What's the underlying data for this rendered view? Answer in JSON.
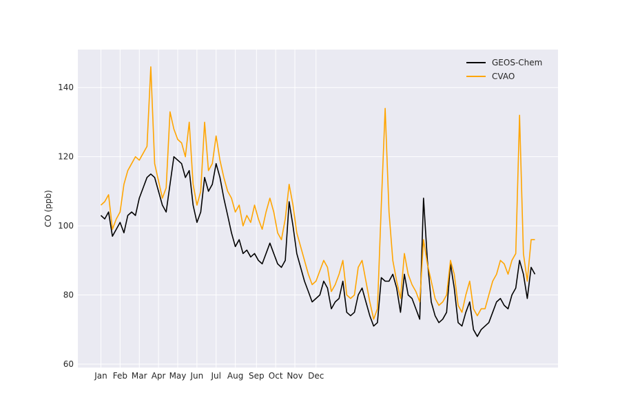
{
  "chart_data": {
    "type": "line",
    "title": "",
    "xlabel": "",
    "ylabel": "CO (ppb)",
    "ylim": [
      59,
      151
    ],
    "xlim_days": [
      -43,
      207
    ],
    "x_tick_labels": [
      "Jan",
      "Feb",
      "Mar",
      "Apr",
      "May",
      "Jun",
      "Jul",
      "Aug",
      "Sep",
      "Oct",
      "Nov",
      "Dec"
    ],
    "y_ticks": [
      60,
      80,
      100,
      120,
      140
    ],
    "grid": true,
    "legend_position": "top-right",
    "x_unit": "days",
    "series": [
      {
        "name": "GEOS-Chem",
        "color": "#000000",
        "x": [
          -31,
          -29,
          -27,
          -25,
          -23,
          -21,
          -19,
          -17,
          -15,
          -13,
          -11,
          -9,
          -7,
          -5,
          -3,
          -1,
          1,
          3,
          5,
          7,
          9,
          11,
          13,
          15,
          17,
          19,
          21,
          23,
          25,
          27,
          29,
          31,
          33,
          35,
          37,
          39,
          41,
          43,
          45,
          47,
          49,
          51,
          53,
          55,
          57,
          59,
          61,
          63,
          65,
          67,
          69,
          71,
          73,
          75,
          77,
          79,
          81,
          83,
          85,
          87,
          89,
          91,
          93,
          95,
          97,
          99,
          101,
          103,
          105,
          107,
          109,
          111,
          113,
          115,
          117,
          119,
          121,
          123,
          125,
          127,
          129,
          131,
          133,
          135,
          137,
          139,
          141,
          143,
          145,
          147,
          149,
          151,
          153,
          155,
          157,
          159,
          161,
          163,
          165,
          167,
          169,
          171,
          173,
          175,
          177,
          179,
          181,
          183,
          185,
          187,
          189,
          191,
          193,
          195
        ],
        "y": [
          103,
          102,
          104,
          97,
          99,
          101,
          98,
          103,
          104,
          103,
          108,
          111,
          114,
          115,
          114,
          110,
          106,
          104,
          112,
          120,
          119,
          118,
          114,
          116,
          106,
          101,
          104,
          114,
          110,
          112,
          118,
          114,
          108,
          103,
          98,
          94,
          96,
          92,
          93,
          91,
          92,
          90,
          89,
          92,
          95,
          92,
          89,
          88,
          90,
          107,
          100,
          92,
          88,
          84,
          81,
          78,
          79,
          80,
          84,
          82,
          76,
          78,
          79,
          84,
          75,
          74,
          75,
          80,
          82,
          78,
          74,
          71,
          72,
          85,
          84,
          84,
          86,
          82,
          75,
          86,
          80,
          79,
          76,
          73,
          108,
          90,
          78,
          74,
          72,
          73,
          75,
          89,
          82,
          72,
          71,
          75,
          78,
          70,
          68,
          70,
          71,
          72,
          75,
          78,
          79,
          77,
          76,
          80,
          82,
          90,
          86,
          79,
          88,
          86
        ]
      },
      {
        "name": "CVAO",
        "color": "#ffa500",
        "x": [
          -31,
          -29,
          -27,
          -25,
          -23,
          -21,
          -19,
          -17,
          -15,
          -13,
          -11,
          -9,
          -7,
          -5,
          -3,
          -1,
          1,
          3,
          5,
          7,
          9,
          11,
          13,
          15,
          17,
          19,
          21,
          23,
          25,
          27,
          29,
          31,
          33,
          35,
          37,
          39,
          41,
          43,
          45,
          47,
          49,
          51,
          53,
          55,
          57,
          59,
          61,
          63,
          65,
          67,
          69,
          71,
          73,
          75,
          77,
          79,
          81,
          83,
          85,
          87,
          89,
          91,
          93,
          95,
          97,
          99,
          101,
          103,
          105,
          107,
          109,
          111,
          113,
          115,
          117,
          119,
          121,
          123,
          125,
          127,
          129,
          131,
          133,
          135,
          137,
          139,
          141,
          143,
          145,
          147,
          149,
          151,
          153,
          155,
          157,
          159,
          161,
          163,
          165,
          167,
          169,
          171,
          173,
          175,
          177,
          179,
          181,
          183,
          185,
          187,
          189,
          191,
          193,
          195
        ],
        "y": [
          106,
          107,
          109,
          99,
          102,
          104,
          112,
          116,
          118,
          120,
          119,
          121,
          123,
          146,
          118,
          113,
          108,
          111,
          133,
          128,
          125,
          124,
          120,
          130,
          112,
          106,
          110,
          130,
          116,
          118,
          126,
          119,
          114,
          110,
          108,
          104,
          106,
          100,
          103,
          101,
          106,
          102,
          99,
          104,
          108,
          104,
          98,
          96,
          102,
          112,
          106,
          98,
          94,
          90,
          86,
          83,
          84,
          87,
          90,
          88,
          81,
          83,
          86,
          90,
          80,
          79,
          80,
          88,
          90,
          84,
          78,
          73,
          76,
          106,
          134,
          104,
          90,
          84,
          79,
          92,
          86,
          83,
          81,
          78,
          96,
          89,
          84,
          79,
          77,
          78,
          80,
          90,
          86,
          77,
          75,
          80,
          84,
          76,
          74,
          76,
          76,
          80,
          84,
          86,
          90,
          89,
          86,
          90,
          92,
          132,
          92,
          84,
          96,
          96
        ]
      }
    ]
  }
}
